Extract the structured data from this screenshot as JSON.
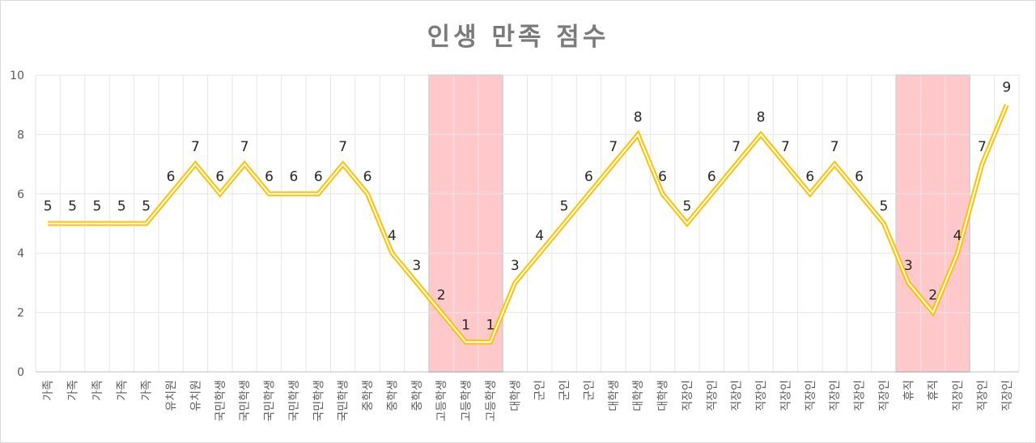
{
  "chart_data": {
    "type": "line",
    "title": "인생 만족 점수",
    "xlabel": "",
    "ylabel": "",
    "ylim": [
      0,
      10
    ],
    "yticks": [
      0,
      2,
      4,
      6,
      8,
      10
    ],
    "grid": true,
    "categories": [
      "가족",
      "가족",
      "가족",
      "가족",
      "가족",
      "유치원",
      "유치원",
      "국민학생",
      "국민학생",
      "국민학생",
      "국민학생",
      "국민학생",
      "국민학생",
      "중학생",
      "중학생",
      "중학생",
      "고등학생",
      "고등학생",
      "고등학생",
      "대학생",
      "군인",
      "군인",
      "군인",
      "대학생",
      "대학생",
      "대학생",
      "직장인",
      "직장인",
      "직장인",
      "직장인",
      "직장인",
      "직장인",
      "직장인",
      "직장인",
      "직장인",
      "휴직",
      "휴직",
      "직장인",
      "직장인",
      "직장인"
    ],
    "series": [
      {
        "name": "",
        "color": "#ffc000",
        "values": [
          5,
          5,
          5,
          5,
          5,
          6,
          7,
          6,
          7,
          6,
          6,
          6,
          7,
          6,
          4,
          3,
          2,
          1,
          1,
          3,
          4,
          5,
          6,
          7,
          8,
          6,
          5,
          6,
          7,
          8,
          7,
          6,
          7,
          6,
          5,
          3,
          2,
          4,
          7,
          9
        ]
      }
    ],
    "highlight_ranges": [
      {
        "from_index": 16,
        "to_index": 18,
        "color": "#ffc9cc"
      },
      {
        "from_index": 35,
        "to_index": 37,
        "color": "#ffc9cc"
      }
    ]
  }
}
